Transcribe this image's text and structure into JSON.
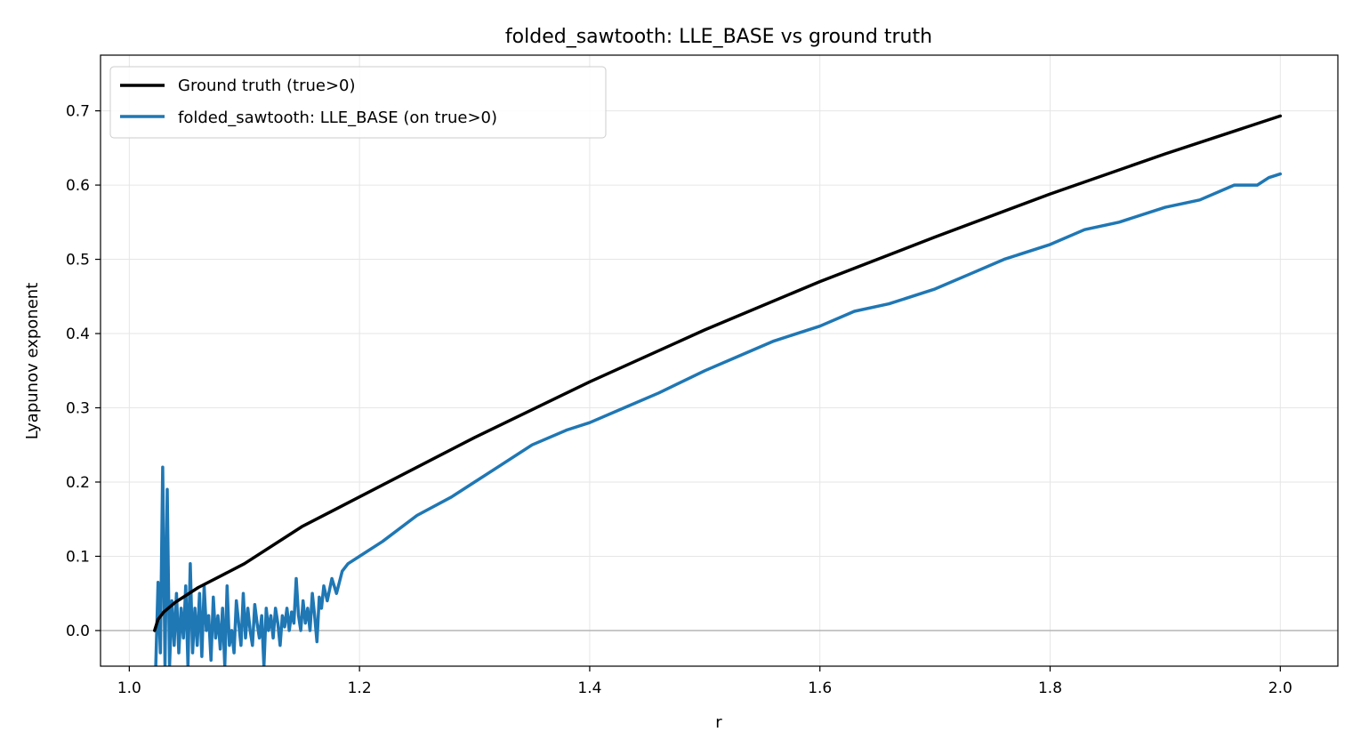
{
  "chart_data": {
    "type": "line",
    "title": "folded_sawtooth: LLE_BASE vs ground truth",
    "xlabel": "r",
    "ylabel": "Lyapunov exponent",
    "xlim": [
      0.975,
      2.05
    ],
    "ylim": [
      -0.048,
      0.775
    ],
    "xticks": [
      "1.0",
      "1.2",
      "1.4",
      "1.6",
      "1.8",
      "2.0"
    ],
    "yticks": [
      "0.0",
      "0.1",
      "0.2",
      "0.3",
      "0.4",
      "0.5",
      "0.6",
      "0.7"
    ],
    "grid": true,
    "zero_line": true,
    "legend_position": "upper-left",
    "series": [
      {
        "name": "Ground truth (true>0)",
        "color": "#000000",
        "x": [
          1.022,
          1.025,
          1.03,
          1.04,
          1.05,
          1.06,
          1.08,
          1.1,
          1.15,
          1.2,
          1.3,
          1.4,
          1.5,
          1.6,
          1.7,
          1.8,
          1.9,
          2.0
        ],
        "y": [
          0.0,
          0.015,
          0.025,
          0.038,
          0.048,
          0.058,
          0.074,
          0.09,
          0.14,
          0.18,
          0.26,
          0.335,
          0.405,
          0.47,
          0.53,
          0.588,
          0.642,
          0.693
        ]
      },
      {
        "name": "folded_sawtooth: LLE_BASE (on true>0)",
        "color": "#1f77b4",
        "x": [
          1.023,
          1.025,
          1.027,
          1.029,
          1.031,
          1.033,
          1.035,
          1.037,
          1.039,
          1.041,
          1.043,
          1.045,
          1.047,
          1.049,
          1.051,
          1.053,
          1.055,
          1.057,
          1.059,
          1.061,
          1.063,
          1.065,
          1.067,
          1.069,
          1.071,
          1.073,
          1.075,
          1.077,
          1.079,
          1.081,
          1.083,
          1.085,
          1.087,
          1.089,
          1.091,
          1.093,
          1.095,
          1.097,
          1.099,
          1.101,
          1.103,
          1.105,
          1.107,
          1.109,
          1.111,
          1.113,
          1.115,
          1.117,
          1.119,
          1.121,
          1.123,
          1.125,
          1.127,
          1.129,
          1.131,
          1.133,
          1.135,
          1.137,
          1.139,
          1.141,
          1.143,
          1.145,
          1.147,
          1.149,
          1.151,
          1.153,
          1.155,
          1.157,
          1.159,
          1.161,
          1.163,
          1.165,
          1.167,
          1.169,
          1.172,
          1.176,
          1.18,
          1.185,
          1.19,
          1.2,
          1.22,
          1.25,
          1.28,
          1.3,
          1.32,
          1.35,
          1.38,
          1.4,
          1.43,
          1.46,
          1.5,
          1.53,
          1.56,
          1.6,
          1.63,
          1.66,
          1.7,
          1.73,
          1.76,
          1.8,
          1.83,
          1.86,
          1.9,
          1.93,
          1.96,
          1.98,
          1.99,
          2.0
        ],
        "y": [
          -0.048,
          0.065,
          -0.03,
          0.22,
          -0.048,
          0.19,
          -0.048,
          0.04,
          -0.02,
          0.05,
          -0.03,
          0.03,
          -0.01,
          0.06,
          -0.048,
          0.09,
          -0.03,
          0.03,
          -0.02,
          0.05,
          -0.035,
          0.06,
          0.0,
          0.02,
          -0.04,
          0.045,
          -0.01,
          0.02,
          -0.025,
          0.03,
          -0.048,
          0.06,
          -0.02,
          0.0,
          -0.03,
          0.04,
          0.01,
          -0.02,
          0.05,
          -0.01,
          0.03,
          0.0,
          -0.02,
          0.035,
          0.01,
          -0.01,
          0.02,
          -0.048,
          0.03,
          0.0,
          0.02,
          -0.01,
          0.03,
          0.01,
          -0.02,
          0.02,
          0.005,
          0.03,
          0.0,
          0.025,
          0.01,
          0.07,
          0.02,
          0.0,
          0.04,
          0.01,
          0.03,
          0.0,
          0.05,
          0.02,
          -0.015,
          0.045,
          0.03,
          0.06,
          0.04,
          0.07,
          0.05,
          0.08,
          0.09,
          0.1,
          0.12,
          0.155,
          0.18,
          0.2,
          0.22,
          0.25,
          0.27,
          0.28,
          0.3,
          0.32,
          0.35,
          0.37,
          0.39,
          0.41,
          0.43,
          0.44,
          0.46,
          0.48,
          0.5,
          0.52,
          0.54,
          0.55,
          0.57,
          0.58,
          0.6,
          0.6,
          0.61,
          0.615
        ]
      }
    ]
  }
}
